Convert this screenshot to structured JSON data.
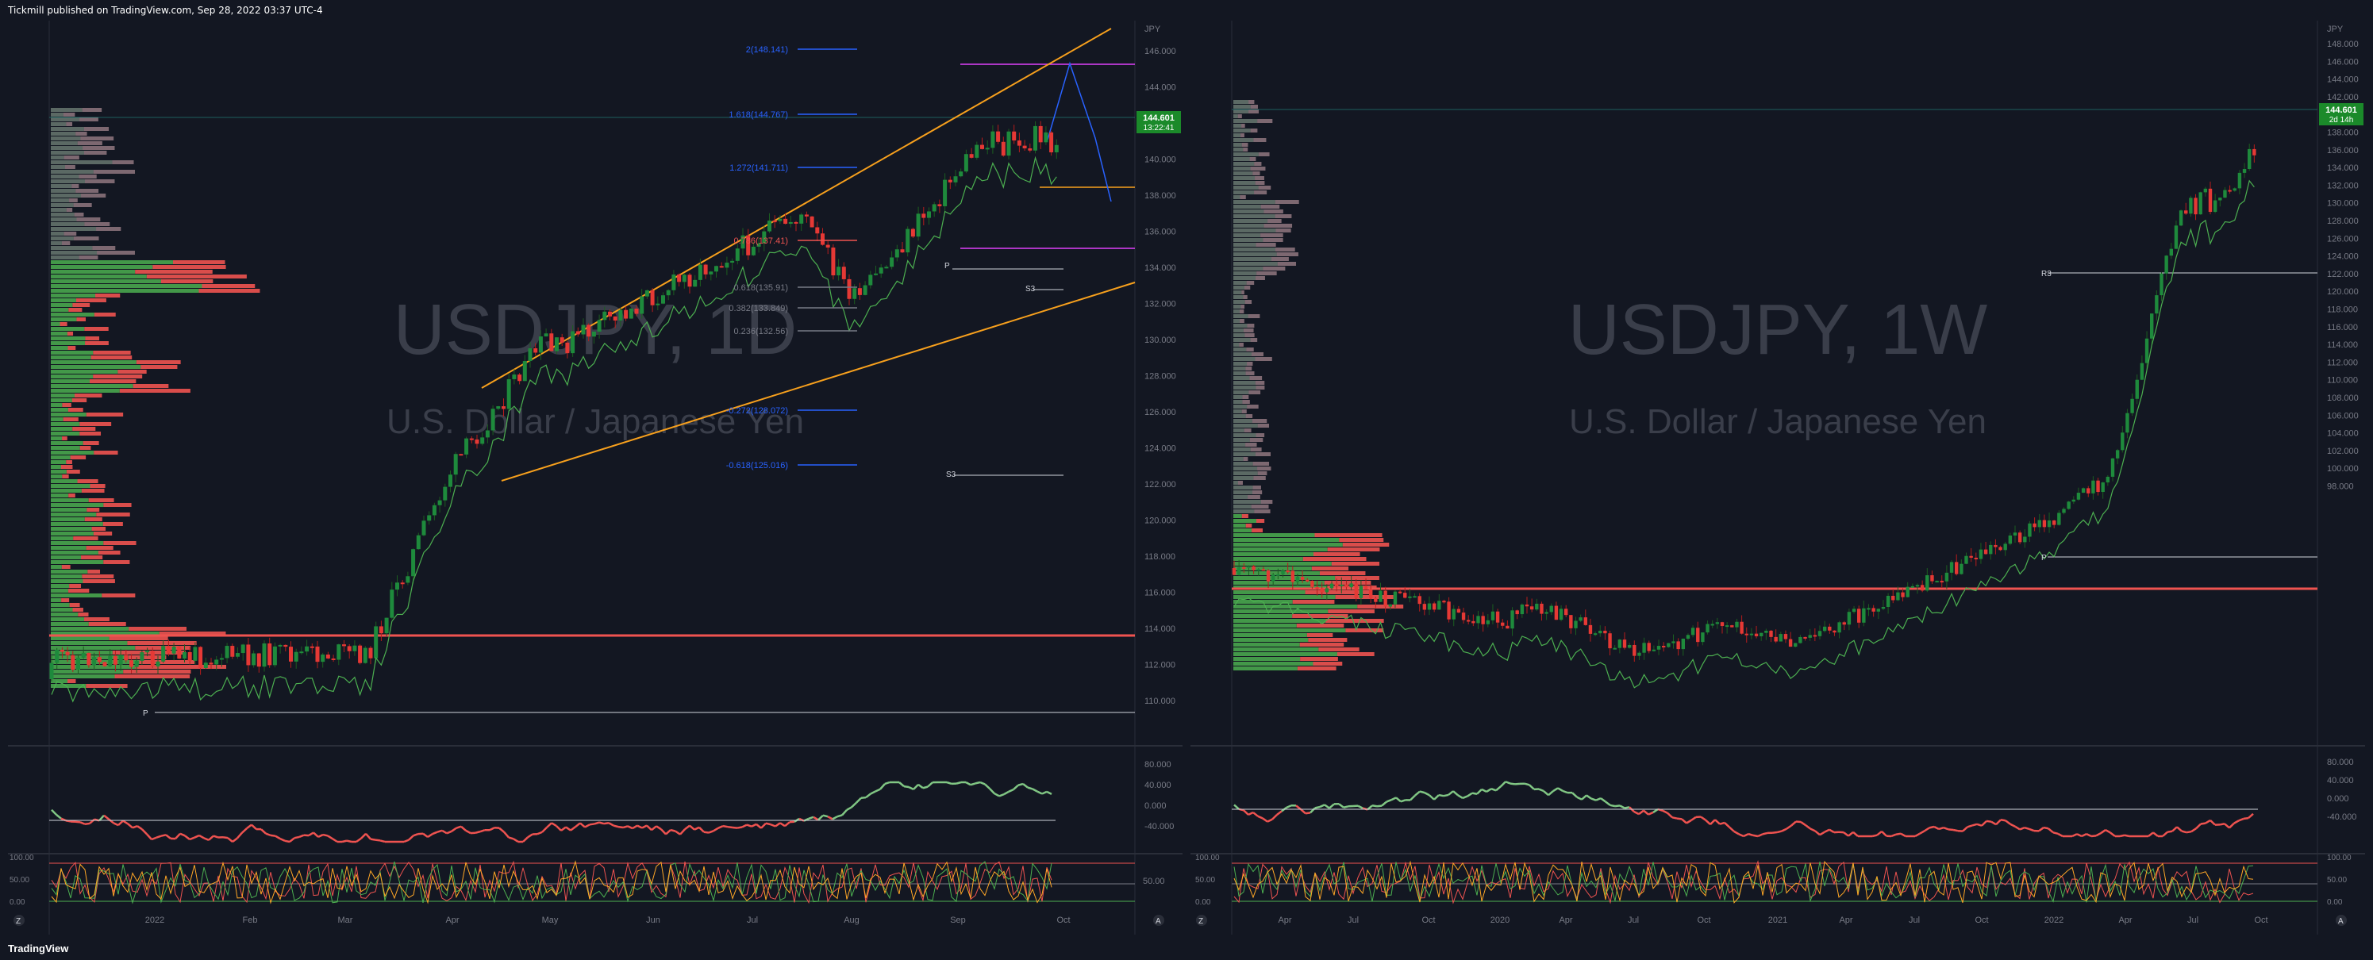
{
  "header": {
    "publisher": "Tickmill published on TradingView.com, Sep 28, 2022 03:37 UTC-4"
  },
  "footer": {
    "brand": "TradingView"
  },
  "left_chart": {
    "watermark_symbol": "USDJPY, 1D",
    "watermark_name": "U.S. Dollar / Japanese Yen",
    "currency": "JPY",
    "price_badge": "144.601",
    "price_badge_sub": "13:22:41",
    "price_ticks": [
      "146.000",
      "144.000",
      "142.000",
      "140.000",
      "138.000",
      "136.000",
      "134.000",
      "132.000",
      "130.000",
      "128.000",
      "126.000",
      "124.000",
      "122.000",
      "120.000",
      "118.000",
      "116.000",
      "114.000",
      "112.000",
      "110.000"
    ],
    "time_ticks": [
      "2022",
      "Feb",
      "Mar",
      "Apr",
      "May",
      "Jun",
      "Jul",
      "Aug",
      "Sep",
      "Oct"
    ],
    "fib_labels": [
      "2(148.141)",
      "1.618(144.767)",
      "1.272(141.711)",
      "0.786(137.41)",
      "0.618(135.91)",
      "0.382(133.849)",
      "0.236(132.56)",
      "-0.272(128.072)",
      "-0.618(125.016)"
    ],
    "pivot_labels": {
      "p_upper": "P",
      "s3_upper": "S3",
      "s3_lower": "S3",
      "p_lower": "P"
    },
    "osc1_ticks": [
      "80.000",
      "40.000",
      "0.000",
      "-40.000"
    ],
    "osc2_ticks": [
      "100.00",
      "50.00",
      "0.00"
    ],
    "osc2_right": "50.00",
    "corner_z": "Z",
    "corner_a": "A"
  },
  "right_chart": {
    "watermark_symbol": "USDJPY, 1W",
    "watermark_name": "U.S. Dollar / Japanese Yen",
    "currency": "JPY",
    "price_badge": "144.601",
    "price_badge_sub": "2d 14h",
    "price_ticks": [
      "148.000",
      "146.000",
      "144.000",
      "142.000",
      "140.000",
      "138.000",
      "136.000",
      "134.000",
      "132.000",
      "130.000",
      "128.000",
      "126.000",
      "124.000",
      "122.000",
      "120.000",
      "118.000",
      "116.000",
      "114.000",
      "112.000",
      "110.000",
      "108.000",
      "106.000",
      "104.000",
      "102.000",
      "100.000",
      "98.000"
    ],
    "time_ticks": [
      "Apr",
      "Jul",
      "Oct",
      "2020",
      "Apr",
      "Jul",
      "Oct",
      "2021",
      "Apr",
      "Jul",
      "Oct",
      "2022",
      "Apr",
      "Jul",
      "Oct"
    ],
    "pivot_labels": {
      "r3": "R3",
      "p": "P"
    },
    "osc1_ticks": [
      "80.000",
      "40.000",
      "0.000",
      "-40.000"
    ],
    "osc2_ticks": [
      "100.00",
      "50.00",
      "0.00"
    ],
    "osc2_right": [
      "100.00",
      "50.00",
      "0.00"
    ],
    "corner_z": "Z",
    "corner_a": "A"
  },
  "colors": {
    "bg": "#131722",
    "up": "#26a69a",
    "up_green": "#4caf50",
    "down": "#ef5350",
    "fib_line": "#2962ff",
    "channel": "#f7a01d",
    "badge": "#1b8a2a",
    "pivot": "#d1d4dc",
    "magenta": "#e040fb"
  }
}
